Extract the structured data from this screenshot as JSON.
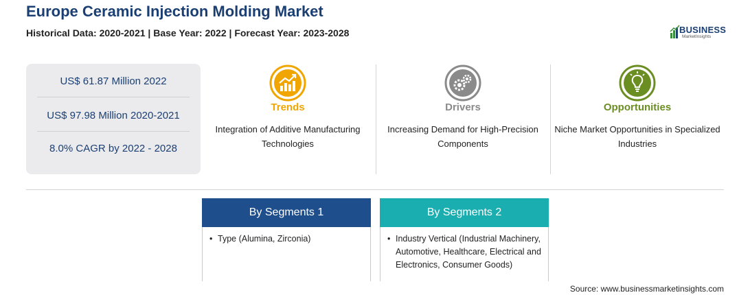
{
  "header": {
    "title": "Europe Ceramic Injection Molding Market",
    "subtitle": "Historical Data: 2020-2021 | Base Year: 2022 | Forecast Year: 2023-2028"
  },
  "logo": {
    "main": "BUSINESS",
    "sub": "MarketInsights"
  },
  "stats": [
    "US$ 61.87 Million 2022",
    "US$ 97.98 Million 2020-2021",
    "8.0% CAGR by 2022 - 2028"
  ],
  "drivers": [
    {
      "icon": "growth-chart-icon",
      "color": "#f0a500",
      "title": "Trends",
      "desc": "Integration of Additive Manufacturing Technologies"
    },
    {
      "icon": "gears-icon",
      "color": "#8a8a8a",
      "title": "Drivers",
      "desc": "Increasing Demand for High-Precision Components"
    },
    {
      "icon": "lightbulb-icon",
      "color": "#6b8e23",
      "title": "Opportunities",
      "desc": "Niche Market Opportunities in Specialized Industries"
    }
  ],
  "segments": [
    {
      "title": "By Segments 1",
      "color": "#1f4e8c",
      "items": [
        "Type (Alumina, Zirconia)"
      ]
    },
    {
      "title": "By Segments 2",
      "color": "#1aaeb0",
      "items": [
        "Industry Vertical (Industrial Machinery, Automotive, Healthcare, Electrical and Electronics, Consumer Goods)"
      ]
    }
  ],
  "source": "Source: www.businessmarketinsights.com"
}
